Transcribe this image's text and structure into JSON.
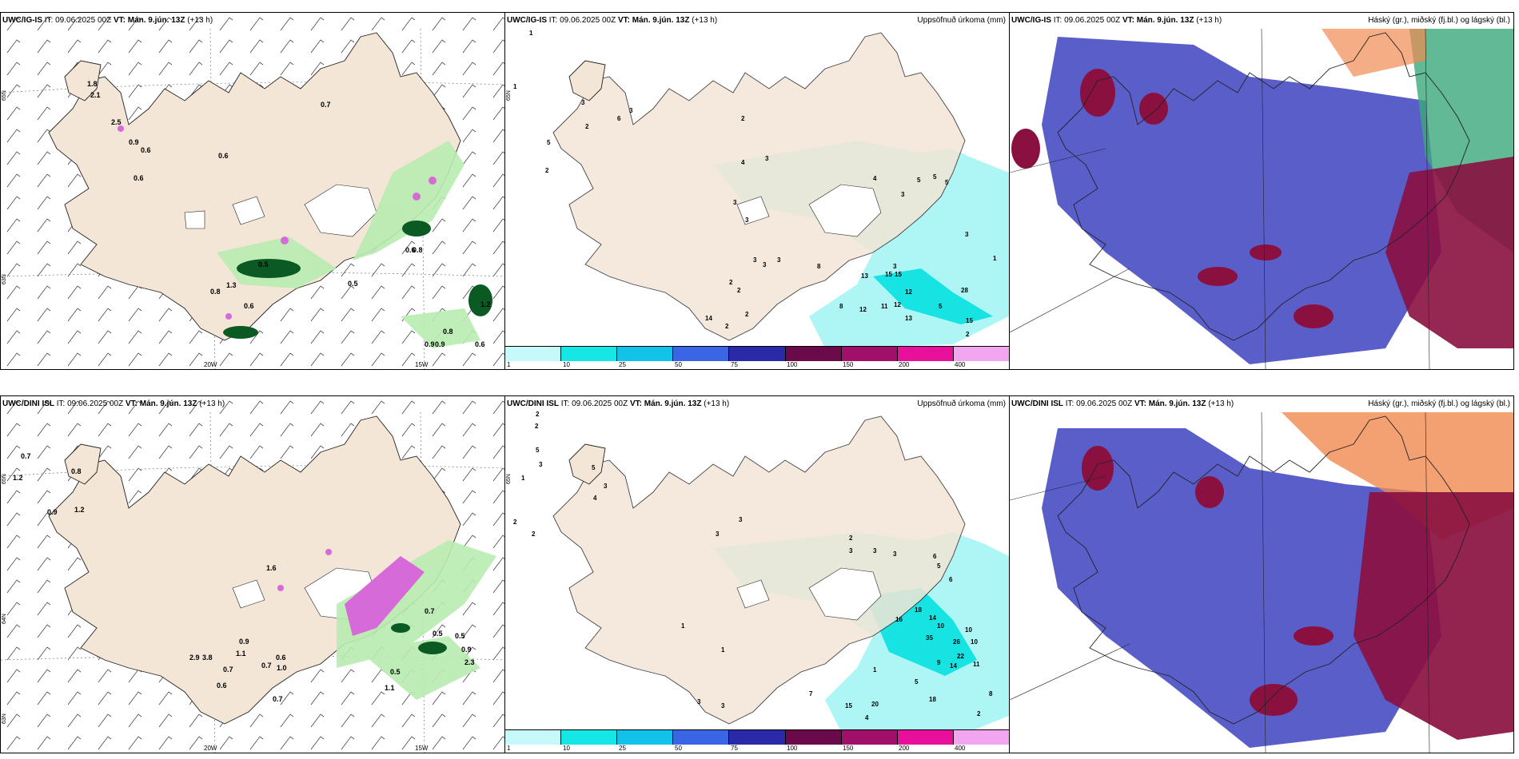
{
  "colors": {
    "land": "#f3e6d6",
    "coast": "#222222",
    "precip": "#aef6f6",
    "precip_dark": "#18e3e3",
    "cloud_low": "#5a5ec8",
    "cloud_mid": "#8a1040",
    "cloud_high": "#f08a50",
    "green_light": "#b8ecb0",
    "green_dark": "#0b5a24",
    "magenta": "#d66ad8"
  },
  "colorbar": {
    "labels": [
      "1",
      "10",
      "25",
      "50",
      "75",
      "100",
      "150",
      "200",
      "400",
      ""
    ],
    "colors": [
      "#c6fafa",
      "#16e6e6",
      "#12c2e8",
      "#3a66e6",
      "#2a2aa8",
      "#6a0a4a",
      "#a0106a",
      "#e8109a",
      "#f2a6f0"
    ]
  },
  "axes": {
    "lat_label": "65N",
    "lat_label_mid": "64N",
    "lat_label_low": "63N",
    "lon_labels": [
      "20W",
      "15W"
    ]
  },
  "top_row": {
    "panel_left": {
      "model": "UWC/IG-IS",
      "it_label": "IT:",
      "it_value": "09.06.2025 00Z",
      "vt_label": "VT:",
      "vt_value": "Mán. 9.jún. 13Z",
      "lead": "(+13 h)",
      "values": [
        "0.7",
        "0.6",
        "0.6",
        "0.9",
        "0.6",
        "0.5",
        "0.8",
        "0.6",
        "0.6",
        "0.9",
        "0.8",
        "0.9",
        "0.6",
        "1.2",
        "2.1",
        "1.8",
        "2.5",
        "1.3",
        "0.8",
        "0.5"
      ]
    },
    "panel_mid": {
      "model": "UWC/IG-IS",
      "it_label": "IT:",
      "it_value": "09.06.2025 00Z",
      "vt_label": "VT:",
      "vt_value": "Mán. 9.jún. 13Z",
      "lead": "(+13 h)",
      "right_title": "Uppsöfnuð úrkoma (mm)",
      "values": [
        "1",
        "1",
        "5",
        "2",
        "2",
        "3",
        "6",
        "3",
        "2",
        "4",
        "3",
        "3",
        "3",
        "2",
        "3",
        "3",
        "3",
        "2",
        "2",
        "4",
        "5",
        "5",
        "5",
        "3",
        "3",
        "8",
        "13",
        "15",
        "15",
        "12",
        "8",
        "12",
        "11",
        "12",
        "13",
        "5",
        "28",
        "15",
        "2",
        "1",
        "3",
        "14",
        "2"
      ]
    },
    "panel_right": {
      "model": "UWC/IG-IS",
      "it_label": "IT:",
      "it_value": "09.06.2025 00Z",
      "vt_label": "VT:",
      "vt_value": "Mán. 9.jún. 13Z",
      "lead": "(+13 h)",
      "right_title": "Háský (gr.), miðský (fj.bl.) og lágský (bl.)"
    }
  },
  "bottom_row": {
    "panel_left": {
      "model": "UWC/DINI ISL",
      "it_label": "IT:",
      "it_value": "09.06.2025 00Z",
      "vt_label": "VT:",
      "vt_value": "Mán. 9.jún. 13Z",
      "lead": "(+13 h)",
      "values": [
        "0.7",
        "1.2",
        "0.8",
        "0.9",
        "1.2",
        "1.6",
        "0.9",
        "1.1",
        "0.7",
        "0.6",
        "0.7",
        "0.6",
        "0.7",
        "0.5",
        "1.1",
        "0.5",
        "0.9",
        "0.5",
        "0.7",
        "2.9",
        "3.8",
        "1.0",
        "2.3"
      ]
    },
    "panel_mid": {
      "model": "UWC/DINI ISL",
      "it_label": "IT:",
      "it_value": "09.06.2025 00Z",
      "vt_label": "VT:",
      "vt_value": "Mán. 9.jún. 13Z",
      "lead": "(+13 h)",
      "right_title": "Uppsöfnuð úrkoma (mm)",
      "values": [
        "2",
        "2",
        "5",
        "3",
        "1",
        "2",
        "2",
        "4",
        "5",
        "3",
        "3",
        "3",
        "2",
        "3",
        "3",
        "3",
        "6",
        "5",
        "6",
        "18",
        "14",
        "16",
        "10",
        "35",
        "26",
        "10",
        "22",
        "11",
        "9",
        "14",
        "10",
        "5",
        "18",
        "20",
        "15",
        "4",
        "7",
        "8",
        "2",
        "1",
        "3",
        "3",
        "1",
        "1"
      ]
    },
    "panel_right": {
      "model": "UWC/DINI ISL",
      "it_label": "IT:",
      "it_value": "09.06.2025 00Z",
      "vt_label": "VT:",
      "vt_value": "Mán. 9.jún. 13Z",
      "lead": "(+13 h)",
      "right_title": "Háský (gr.), miðský (fj.bl.) og lágský (bl.)"
    }
  }
}
